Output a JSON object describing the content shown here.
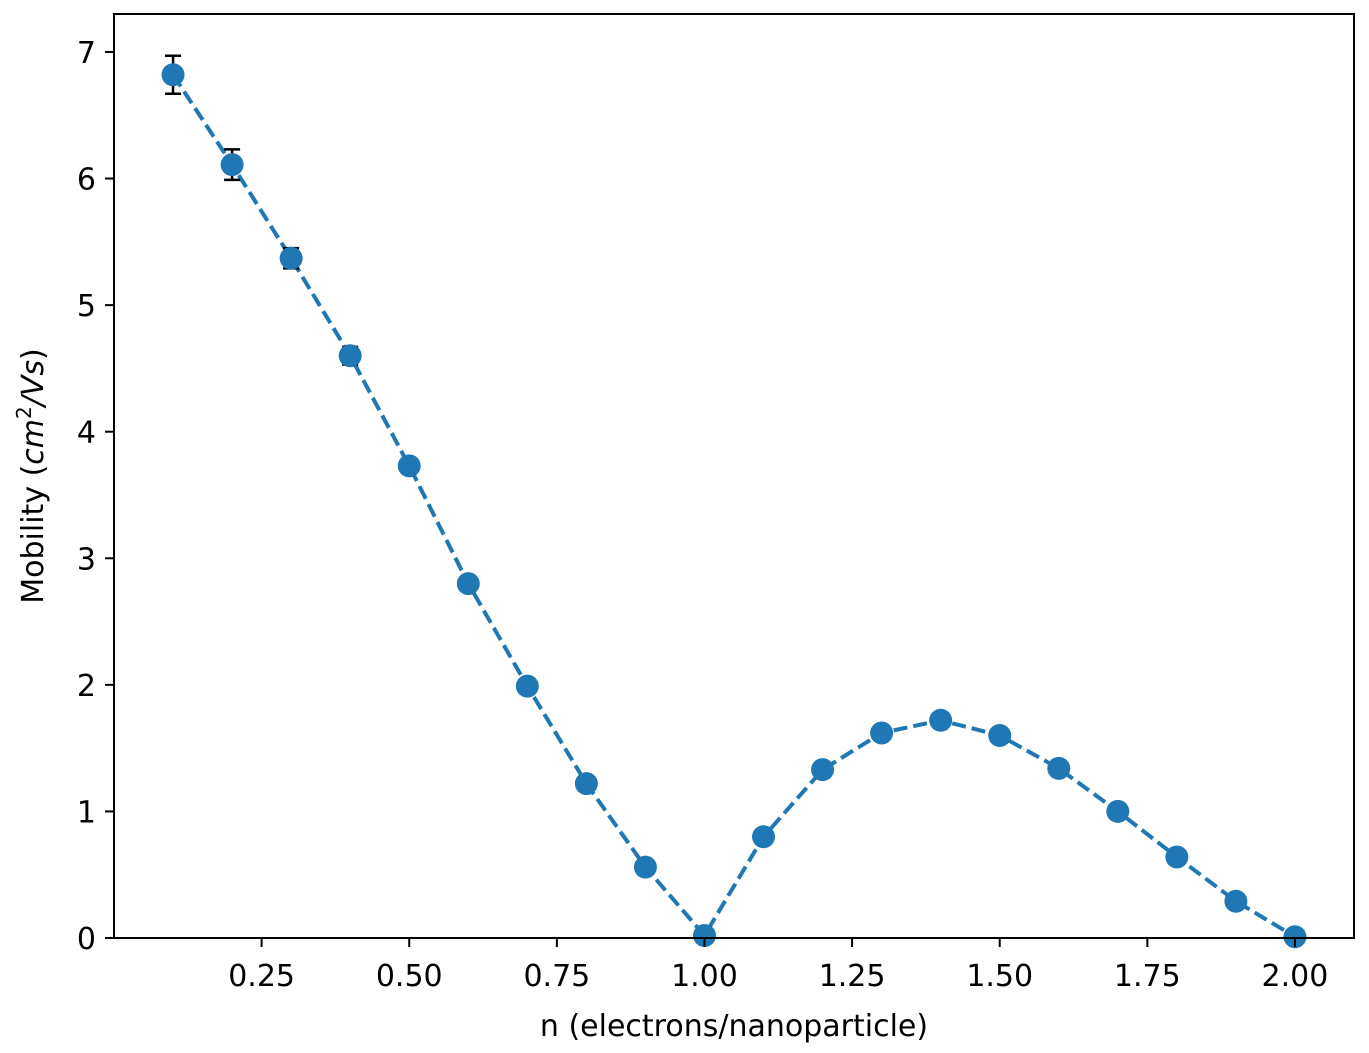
{
  "chart_data": {
    "type": "line",
    "title": "",
    "xlabel": "n (electrons/nanoparticle)",
    "ylabel": "Mobility (cm²/Vs)",
    "ylabel_parts": {
      "prefix": "Mobility (",
      "unit_base": "cm",
      "unit_exp": "2",
      "unit_rest": "/Vs",
      "suffix": ")"
    },
    "xlim": [
      0.0,
      2.1
    ],
    "ylim": [
      0,
      7.3
    ],
    "x_ticks": [
      0.25,
      0.5,
      0.75,
      1.0,
      1.25,
      1.5,
      1.75,
      2.0
    ],
    "x_tick_labels": [
      "0.25",
      "0.50",
      "0.75",
      "1.00",
      "1.25",
      "1.50",
      "1.75",
      "2.00"
    ],
    "y_ticks": [
      0,
      1,
      2,
      3,
      4,
      5,
      6,
      7
    ],
    "y_tick_labels": [
      "0",
      "1",
      "2",
      "3",
      "4",
      "5",
      "6",
      "7"
    ],
    "grid": false,
    "series": [
      {
        "color": "#1f77b4",
        "line_style": "dashed",
        "marker": "circle",
        "x": [
          0.1,
          0.2,
          0.3,
          0.4,
          0.5,
          0.6,
          0.7,
          0.8,
          0.9,
          1.0,
          1.1,
          1.2,
          1.3,
          1.4,
          1.5,
          1.6,
          1.7,
          1.8,
          1.9,
          2.0
        ],
        "y": [
          6.82,
          6.11,
          5.37,
          4.6,
          3.73,
          2.8,
          1.99,
          1.22,
          0.56,
          0.02,
          0.8,
          1.33,
          1.62,
          1.72,
          1.6,
          1.34,
          1.0,
          0.64,
          0.29,
          0.01
        ],
        "error": [
          0.15,
          0.12,
          0.08,
          0.07,
          0.04,
          0.03,
          0.02,
          0.02,
          0.01,
          0.0,
          0.01,
          0.02,
          0.02,
          0.02,
          0.02,
          0.02,
          0.01,
          0.01,
          0.01,
          0.0
        ]
      }
    ],
    "errorbar_color": "#000000"
  }
}
